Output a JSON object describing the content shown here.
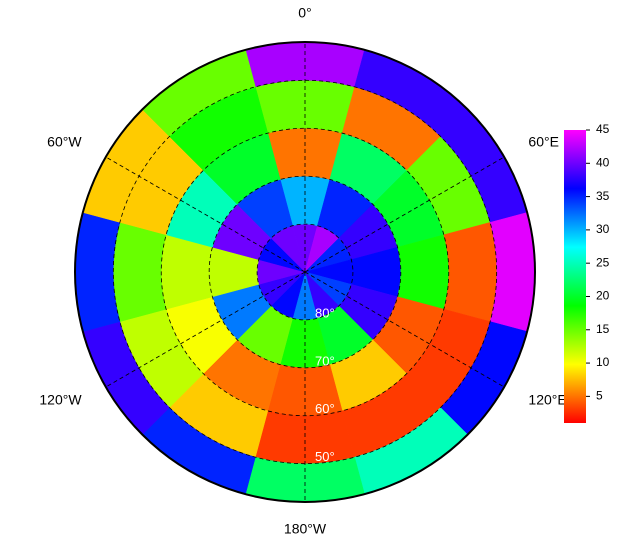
{
  "chart_data": {
    "type": "polar-heatmap",
    "rlim": [
      -90,
      -42
    ],
    "lon_ticks": [
      {
        "value": 0,
        "label": "0°"
      },
      {
        "value": 60,
        "label": "60°E"
      },
      {
        "value": 120,
        "label": "120°E"
      },
      {
        "value": -180,
        "label": "180°W"
      },
      {
        "value": -120,
        "label": "120°W"
      },
      {
        "value": -60,
        "label": "60°W"
      }
    ],
    "lat_ticks": [
      {
        "value": -80,
        "label": "80°"
      },
      {
        "value": -70,
        "label": "70°"
      },
      {
        "value": -60,
        "label": "60°"
      },
      {
        "value": -50,
        "label": "50°"
      }
    ],
    "lon_bins": [
      -15,
      15,
      45,
      75,
      105,
      135,
      165,
      195,
      225,
      255,
      285,
      315,
      345
    ],
    "lat_bins": [
      -90,
      -80,
      -70,
      -60,
      -50,
      -42
    ],
    "values": [
      [
        40,
        42,
        35,
        36,
        34,
        38,
        32,
        36,
        38,
        40,
        36,
        40
      ],
      [
        30,
        35,
        38,
        36,
        38,
        20,
        18,
        15,
        32,
        12,
        40,
        34
      ],
      [
        5,
        22,
        20,
        18,
        4,
        8,
        4,
        5,
        10,
        12,
        25,
        20
      ],
      [
        15,
        5,
        15,
        4,
        3,
        3,
        3,
        8,
        12,
        15,
        8,
        18
      ],
      [
        42,
        38,
        38,
        44,
        36,
        25,
        22,
        35,
        38,
        35,
        8,
        15
      ]
    ],
    "clim": [
      1,
      45
    ],
    "colorbar_ticks": [
      5,
      10,
      15,
      20,
      25,
      30,
      35,
      40,
      45
    ],
    "colormap": [
      "#ff0000",
      "#ffff00",
      "#00ff00",
      "#00ffff",
      "#0000ff",
      "#ff00ff"
    ]
  }
}
